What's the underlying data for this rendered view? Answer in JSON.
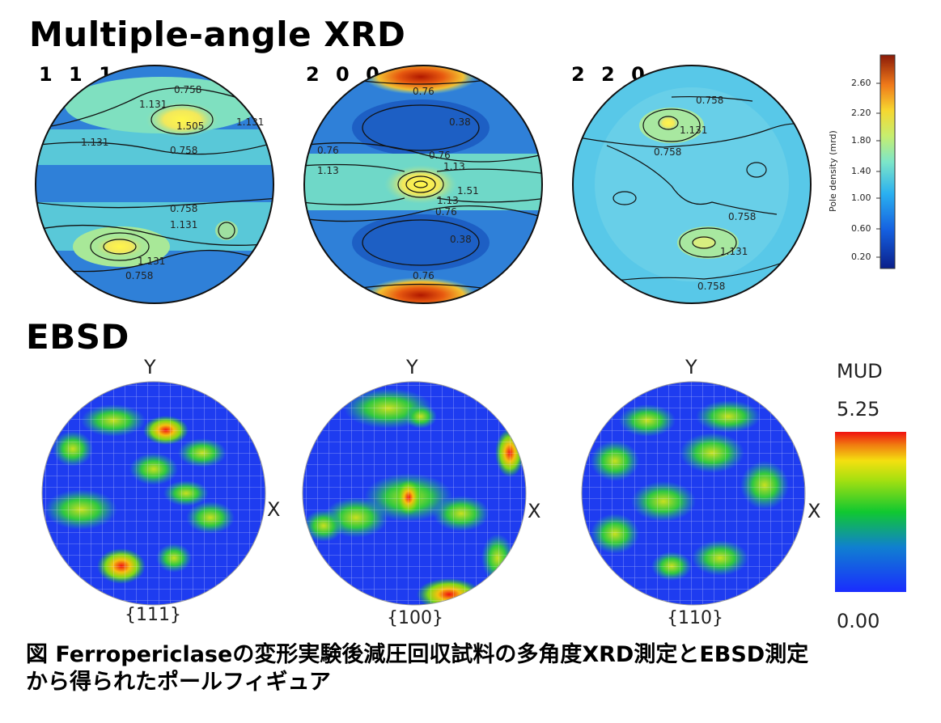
{
  "xrd": {
    "title": "Multiple-angle XRD",
    "planes": [
      "1 1 1",
      "2 0 0",
      "2 2 0"
    ],
    "contours": {
      "p111": [
        "0.758",
        "1.131",
        "1.505",
        "1.131",
        "1.131",
        "0.758",
        "0.758",
        "1.131",
        "1.131",
        "0.758"
      ],
      "p200": [
        "0.76",
        "0.38",
        "0.76",
        "0.76",
        "1.13",
        "1.13",
        "1.51",
        "1.13",
        "0.76",
        "0.38",
        "0.76"
      ],
      "p220": [
        "0.758",
        "1.131",
        "0.758",
        "0.758",
        "1.131",
        "0.758"
      ]
    },
    "colorbar": {
      "title": "Pole density (mrd)",
      "ticks": [
        "2.60",
        "2.20",
        "1.80",
        "1.40",
        "1.00",
        "0.60",
        "0.20"
      ]
    }
  },
  "ebsd": {
    "title": "EBSD",
    "axis_y": "Y",
    "axis_x": "X",
    "poles": [
      "{111}",
      "{100}",
      "{110}"
    ],
    "colorbar": {
      "title": "MUD",
      "max": "5.25",
      "min": "0.00"
    }
  },
  "caption": {
    "line1": "図 Ferropericlaseの変形実験後減圧回収試料の多角度XRD測定とEBSD測定",
    "line2": "から得られたポールフィギュア"
  }
}
